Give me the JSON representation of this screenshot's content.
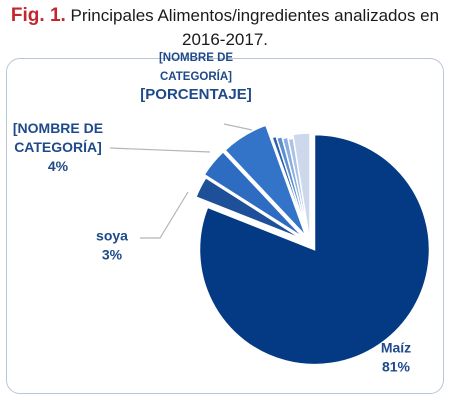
{
  "caption": {
    "fig_label": "Fig. 1.",
    "line1": "Principales Alimentos/ingredientes analizados en",
    "line2": "2016-2017."
  },
  "colors": {
    "fig_label": "#c1272d",
    "label_text": "#1f4a8a",
    "leader_line": "#b5b5b5"
  },
  "chart_data": {
    "type": "pie",
    "slices": [
      {
        "name": "Maíz",
        "value": 81,
        "color": "#043a83",
        "exploded": true,
        "label_lines": [
          "Maíz",
          "81%"
        ]
      },
      {
        "name": "soya",
        "value": 3,
        "color": "#1e4f99",
        "exploded": true,
        "label_lines": [
          "soya",
          "3%"
        ]
      },
      {
        "name": "[NOMBRE DE CATEGORÍA]",
        "value": 4,
        "color": "#2d6cc1",
        "exploded": true,
        "label_lines": [
          "[NOMBRE DE",
          "CATEGORÍA]",
          "4%"
        ]
      },
      {
        "name": "[NOMBRE DE CATEGORÍA]",
        "value": 6.5,
        "color": "#3474c8",
        "exploded": true,
        "label_lines": [
          "[NOMBRE DE",
          "CATEGORÍA]",
          "[PORCENTAJE]"
        ]
      },
      {
        "name": "",
        "value": 0.6,
        "color": "#2a5fae",
        "exploded": false,
        "label_lines": []
      },
      {
        "name": "",
        "value": 0.8,
        "color": "#5d8fd2",
        "exploded": false,
        "label_lines": []
      },
      {
        "name": "",
        "value": 0.8,
        "color": "#8aaede",
        "exploded": false,
        "label_lines": []
      },
      {
        "name": "",
        "value": 0.8,
        "color": "#a9c2e6",
        "exploded": false,
        "label_lines": []
      },
      {
        "name": "",
        "value": 2.5,
        "color": "#cdd8ec",
        "exploded": false,
        "label_lines": []
      }
    ]
  }
}
